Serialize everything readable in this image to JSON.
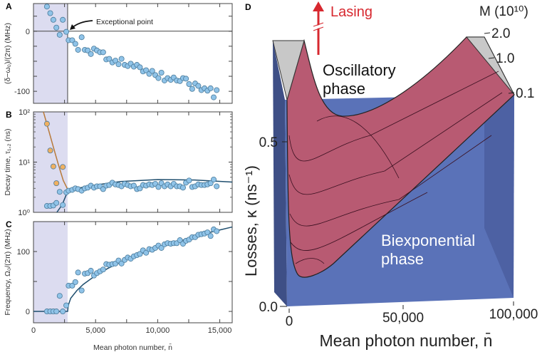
{
  "chart_data": [
    {
      "panel": "A",
      "type": "scatter",
      "ylabel": "(δ−ω₀)/(2π) (MHz)",
      "xlim": [
        0,
        16000
      ],
      "ylim": [
        -120,
        46
      ],
      "yscale": "linear",
      "yticks": [
        0,
        -100
      ],
      "shaded_region": [
        0,
        2750
      ],
      "exceptional_point_x": 2750,
      "annotation": "Exceptional point",
      "marker_color": "#8fc3e8",
      "shade_color": "#dcdcf0",
      "points": [
        [
          1084,
          41
        ],
        [
          1350,
          30
        ],
        [
          1600,
          19
        ],
        [
          1845,
          6
        ],
        [
          2110,
          -6
        ],
        [
          2360,
          19
        ],
        [
          2640,
          -1
        ],
        [
          2830,
          -15
        ],
        [
          3120,
          -15
        ],
        [
          3370,
          -21
        ],
        [
          3590,
          -31
        ],
        [
          3880,
          -10
        ],
        [
          4130,
          -31
        ],
        [
          4370,
          -32
        ],
        [
          4620,
          -38
        ],
        [
          4870,
          -29
        ],
        [
          5110,
          -32
        ],
        [
          5360,
          -35
        ],
        [
          5610,
          -35
        ],
        [
          5860,
          -47
        ],
        [
          6100,
          -46
        ],
        [
          6350,
          -52
        ],
        [
          6600,
          -49
        ],
        [
          6850,
          -55
        ],
        [
          7090,
          -46
        ],
        [
          7340,
          -56
        ],
        [
          7590,
          -58
        ],
        [
          7830,
          -54
        ],
        [
          8080,
          -59
        ],
        [
          8330,
          -56
        ],
        [
          8570,
          -60
        ],
        [
          8820,
          -67
        ],
        [
          9070,
          -65
        ],
        [
          9320,
          -71
        ],
        [
          9560,
          -66
        ],
        [
          9810,
          -73
        ],
        [
          10060,
          -78
        ],
        [
          10300,
          -69
        ],
        [
          10550,
          -82
        ],
        [
          10800,
          -78
        ],
        [
          11050,
          -81
        ],
        [
          11290,
          -77
        ],
        [
          11540,
          -82
        ],
        [
          11790,
          -83
        ],
        [
          12040,
          -78
        ],
        [
          12280,
          -79
        ],
        [
          12530,
          -88
        ],
        [
          12780,
          -96
        ],
        [
          13020,
          -87
        ],
        [
          13270,
          -91
        ],
        [
          13520,
          -98
        ],
        [
          13770,
          -95
        ],
        [
          14010,
          -99
        ],
        [
          14260,
          -95
        ],
        [
          14510,
          -110
        ],
        [
          14750,
          -98
        ]
      ]
    },
    {
      "panel": "B",
      "type": "scatter",
      "ylabel": "Decay time, τ₁,₂ (ns)",
      "xlim": [
        0,
        16000
      ],
      "ylim": [
        1,
        100
      ],
      "yscale": "log",
      "yticks": [
        {
          "v": 100,
          "label": "10²"
        },
        {
          "v": 10,
          "label": "10¹"
        },
        {
          "v": 1,
          "label": "10⁰"
        }
      ],
      "shaded_region": [
        0,
        2750
      ],
      "series": [
        {
          "color": "#f0b060",
          "points": [
            [
              1084,
              58
            ],
            [
              1350,
              17
            ],
            [
              1600,
              8.2
            ],
            [
              1845,
              3.8
            ],
            [
              2360,
              8.0
            ]
          ],
          "fit": [
            [
              800,
              100
            ],
            [
              1200,
              45
            ],
            [
              1600,
              20
            ],
            [
              2000,
              9
            ],
            [
              2400,
              4.3
            ],
            [
              2840,
              2.6
            ]
          ],
          "fit_color": "#b87a3a"
        },
        {
          "color": "#8fc3e8",
          "points": [
            [
              1084,
              1.34
            ],
            [
              1350,
              1.34
            ],
            [
              1600,
              1.37
            ],
            [
              1845,
              1.54
            ],
            [
              2110,
              2.56
            ],
            [
              2360,
              1.4
            ],
            [
              2640,
              2.5
            ],
            [
              2830,
              2.7
            ],
            [
              3120,
              2.8
            ],
            [
              3370,
              3.0
            ],
            [
              3590,
              2.9
            ],
            [
              3880,
              2.7
            ],
            [
              4130,
              3.0
            ],
            [
              4370,
              3.1
            ],
            [
              4620,
              3.4
            ],
            [
              4870,
              3.1
            ],
            [
              5110,
              3.3
            ],
            [
              5360,
              3.3
            ],
            [
              5610,
              2.9
            ],
            [
              5860,
              3.4
            ],
            [
              6100,
              3.5
            ],
            [
              6350,
              3.9
            ],
            [
              6600,
              3.6
            ],
            [
              6850,
              3.5
            ],
            [
              7090,
              3.3
            ],
            [
              7340,
              3.7
            ],
            [
              7590,
              3.5
            ],
            [
              7830,
              3.3
            ],
            [
              8080,
              3.4
            ],
            [
              8330,
              2.9
            ],
            [
              8570,
              3.0
            ],
            [
              8820,
              3.5
            ],
            [
              9070,
              3.4
            ],
            [
              9320,
              3.6
            ],
            [
              9560,
              3.5
            ],
            [
              9810,
              3.7
            ],
            [
              10060,
              3.2
            ],
            [
              10300,
              3.8
            ],
            [
              10550,
              3.3
            ],
            [
              10800,
              3.6
            ],
            [
              11050,
              3.3
            ],
            [
              11290,
              3.7
            ],
            [
              11540,
              3.3
            ],
            [
              11790,
              3.3
            ],
            [
              12040,
              3.1
            ],
            [
              12280,
              3.9
            ],
            [
              12530,
              4.3
            ],
            [
              12780,
              3.2
            ],
            [
              13020,
              3.3
            ],
            [
              13270,
              3.6
            ],
            [
              13520,
              3.5
            ],
            [
              13770,
              3.5
            ],
            [
              14010,
              3.6
            ],
            [
              14260,
              3.8
            ],
            [
              14510,
              4.5
            ],
            [
              14750,
              3.3
            ]
          ],
          "fit": [
            [
              1880,
              1.0
            ],
            [
              2300,
              1.4
            ],
            [
              2750,
              2.6
            ],
            [
              3500,
              3.0
            ],
            [
              5000,
              3.5
            ],
            [
              7000,
              4.1
            ],
            [
              10000,
              4.5
            ],
            [
              13000,
              4.4
            ],
            [
              16000,
              4.0
            ]
          ],
          "fit_color": "#1f4e6e"
        }
      ]
    },
    {
      "panel": "C",
      "type": "scatter",
      "ylabel": "Frequency, Ω₀/(2π) (MHz)",
      "xlabel": "Mean photon number, n̄",
      "xlim": [
        0,
        16000
      ],
      "ylim": [
        -19,
        150
      ],
      "yscale": "linear",
      "yticks": [
        0,
        100
      ],
      "xticks": [
        {
          "v": 0,
          "label": "0"
        },
        {
          "v": 5000,
          "label": "5,000"
        },
        {
          "v": 10000,
          "label": "10,000"
        },
        {
          "v": 15000,
          "label": "15,000"
        }
      ],
      "shaded_region": [
        0,
        2750
      ],
      "marker_color": "#8fc3e8",
      "fit_color": "#1f4e6e",
      "points": [
        [
          1084,
          0
        ],
        [
          1350,
          0
        ],
        [
          1600,
          0
        ],
        [
          1845,
          0
        ],
        [
          2110,
          26
        ],
        [
          2360,
          0
        ],
        [
          2640,
          10
        ],
        [
          2830,
          43
        ],
        [
          3120,
          43
        ],
        [
          3370,
          49
        ],
        [
          3590,
          65
        ],
        [
          3880,
          35
        ],
        [
          4130,
          63
        ],
        [
          4370,
          64
        ],
        [
          4620,
          68
        ],
        [
          4870,
          60
        ],
        [
          5110,
          64
        ],
        [
          5360,
          67
        ],
        [
          5610,
          70
        ],
        [
          5860,
          79
        ],
        [
          6100,
          78
        ],
        [
          6350,
          79
        ],
        [
          6600,
          80
        ],
        [
          6850,
          85
        ],
        [
          7090,
          80
        ],
        [
          7340,
          86
        ],
        [
          7590,
          90
        ],
        [
          7830,
          88
        ],
        [
          8080,
          92
        ],
        [
          8330,
          94
        ],
        [
          8570,
          96
        ],
        [
          8820,
          102
        ],
        [
          9070,
          98
        ],
        [
          9320,
          104
        ],
        [
          9560,
          103
        ],
        [
          9810,
          106
        ],
        [
          10060,
          110
        ],
        [
          10300,
          106
        ],
        [
          10550,
          112
        ],
        [
          10800,
          114
        ],
        [
          11050,
          113
        ],
        [
          11290,
          114
        ],
        [
          11540,
          114
        ],
        [
          11790,
          119
        ],
        [
          12040,
          113
        ],
        [
          12280,
          118
        ],
        [
          12530,
          120
        ],
        [
          12780,
          124
        ],
        [
          13020,
          124
        ],
        [
          13270,
          128
        ],
        [
          13520,
          129
        ],
        [
          13770,
          130
        ],
        [
          14010,
          132
        ],
        [
          14260,
          126
        ],
        [
          14510,
          137
        ],
        [
          14750,
          134
        ]
      ],
      "fit": [
        [
          0,
          0
        ],
        [
          2750,
          0
        ],
        [
          2800,
          10
        ],
        [
          3000,
          22
        ],
        [
          3500,
          35
        ],
        [
          4000,
          45
        ],
        [
          5000,
          60
        ],
        [
          6000,
          72
        ],
        [
          7000,
          82
        ],
        [
          8000,
          91
        ],
        [
          9000,
          99
        ],
        [
          10000,
          106
        ],
        [
          11000,
          113
        ],
        [
          12000,
          119
        ],
        [
          13000,
          125
        ],
        [
          14000,
          131
        ],
        [
          15000,
          136
        ],
        [
          16000,
          141
        ]
      ]
    },
    {
      "panel": "D",
      "type": "surface",
      "xlabel": "Mean photon number, n̄",
      "ylabel": "Losses, κ (ns⁻¹)",
      "zlabel": "M (10¹⁰)",
      "xticks": [
        "0",
        "50,000",
        "100,000"
      ],
      "yticks": [
        "0.0",
        "0.5"
      ],
      "zticks": [
        "2.0",
        "1.0",
        "0.1"
      ],
      "regions": [
        "Oscillatory phase",
        "Biexponential phase"
      ],
      "region_lines": {
        "oscillatory": [
          "Oscillatory",
          "phase"
        ],
        "biexponential": [
          "Biexponential",
          "phase"
        ]
      },
      "arrow_label": "Lasing",
      "colors": {
        "surface": "#b85a72",
        "base": "#5a72b8",
        "lasing": "#d7282f",
        "cap": "#c8c8c8"
      }
    }
  ]
}
